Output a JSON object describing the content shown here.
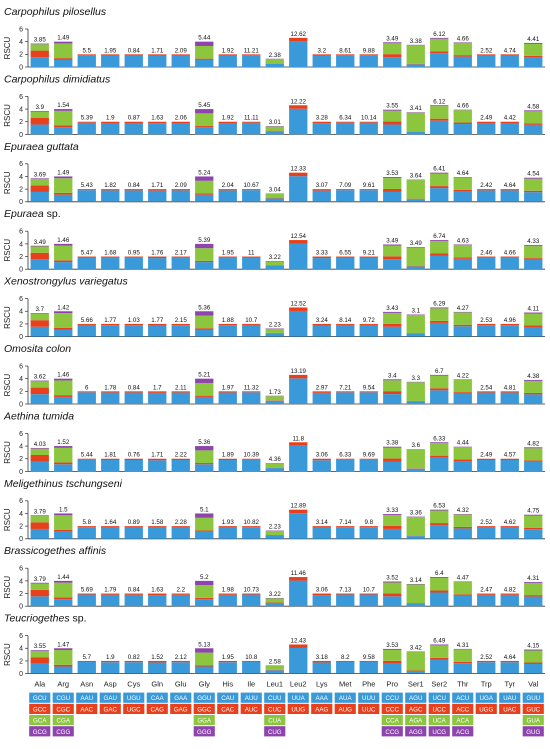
{
  "legend_colors": [
    "#3a9ad9",
    "#e8401c",
    "#8cc63f",
    "#8e44ad"
  ],
  "chart_data": {
    "type": "bar",
    "stacked": true,
    "ylabel": "RSCU",
    "ylim": [
      0,
      6
    ],
    "yticks": [
      0,
      2,
      4,
      6
    ],
    "categories": [
      "Ala",
      "Arg",
      "Asn",
      "Asp",
      "Cys",
      "Gln",
      "Glu",
      "Gly",
      "His",
      "Ile",
      "Leu1",
      "Leu2",
      "Lys",
      "Met",
      "Phe",
      "Pro",
      "Ser1",
      "Ser2",
      "Thr",
      "Trp",
      "Tyr",
      "Val"
    ],
    "codons": [
      [
        "GCU",
        "GCC",
        "GCA",
        "GCG"
      ],
      [
        "CGU",
        "CGC",
        "CGA",
        "CGG"
      ],
      [
        "AAU",
        "AAC"
      ],
      [
        "GAU",
        "GAC"
      ],
      [
        "UGU",
        "UGC"
      ],
      [
        "CAA",
        "CAG"
      ],
      [
        "GAA",
        "GAG"
      ],
      [
        "GGU",
        "GGC",
        "GGA",
        "GGG"
      ],
      [
        "CAU",
        "CAC"
      ],
      [
        "AUU",
        "AUC"
      ],
      [
        "CUU",
        "CUC",
        "CUA",
        "CUG"
      ],
      [
        "UUA",
        "UUG"
      ],
      [
        "AAA",
        "AAG"
      ],
      [
        "AUA",
        "AUG"
      ],
      [
        "UUU",
        "UUC"
      ],
      [
        "CCU",
        "CCC",
        "CCA",
        "CCG"
      ],
      [
        "AGU",
        "AGC",
        "AGA",
        "AGG"
      ],
      [
        "UCU",
        "UCC",
        "UCA",
        "UCG"
      ],
      [
        "ACU",
        "ACC",
        "ACA",
        "ACG"
      ],
      [
        "UGA",
        "UGG"
      ],
      [
        "UAU",
        "UAC"
      ],
      [
        "GUU",
        "GUC",
        "GUA",
        "GUG"
      ]
    ],
    "panels": [
      {
        "title": "Carpophilus pilosellus",
        "roman": "",
        "labels": [
          "3.85",
          "1.49",
          "5.5",
          "1.95",
          "0.84",
          "1.71",
          "2.09",
          "5.44",
          "1.92",
          "11.21",
          "2.38",
          "12.62",
          "3.2",
          "8.61",
          "9.88",
          "3.49",
          "3.38",
          "6.12",
          "4.66",
          "2.52",
          "4.74",
          "4.41"
        ]
      },
      {
        "title": "Carpophilus dimidiatus",
        "roman": "",
        "labels": [
          "3.9",
          "1.54",
          "5.39",
          "1.9",
          "0.87",
          "1.63",
          "2.06",
          "5.45",
          "1.92",
          "11.11",
          "3.01",
          "12.22",
          "3.28",
          "6.34",
          "10.14",
          "3.55",
          "3.41",
          "6.12",
          "4.66",
          "2.49",
          "4.42",
          "4.58"
        ]
      },
      {
        "title": "Epuraea guttata",
        "roman": "",
        "labels": [
          "3.69",
          "1.49",
          "5.43",
          "1.82",
          "0.84",
          "1.71",
          "2.09",
          "5.24",
          "2.04",
          "10.67",
          "3.04",
          "12.33",
          "3.07",
          "7.09",
          "9.61",
          "3.53",
          "3.64",
          "6.41",
          "4.64",
          "2.42",
          "4.64",
          "4.54"
        ]
      },
      {
        "title": "Epuraea",
        "roman": " sp.",
        "labels": [
          "3.49",
          "1.46",
          "5.47",
          "1.68",
          "0.95",
          "1.76",
          "2.17",
          "5.39",
          "1.95",
          "11",
          "3.22",
          "12.54",
          "3.33",
          "6.55",
          "9.21",
          "3.49",
          "3.49",
          "6.74",
          "4.63",
          "2.46",
          "4.66",
          "4.33"
        ]
      },
      {
        "title": "Xenostrongylus variegatus",
        "roman": "",
        "labels": [
          "3.7",
          "1.42",
          "5.66",
          "1.77",
          "1.03",
          "1.77",
          "2.15",
          "5.36",
          "1.88",
          "10.7",
          "2.23",
          "12.52",
          "3.24",
          "8.14",
          "9.72",
          "3.43",
          "3.1",
          "6.29",
          "4.27",
          "2.53",
          "4.96",
          "4.11"
        ]
      },
      {
        "title": "Omosita colon",
        "roman": "",
        "labels": [
          "3.62",
          "1.46",
          "6",
          "1.78",
          "0.84",
          "1.7",
          "2.11",
          "5.21",
          "1.97",
          "11.32",
          "1.73",
          "13.19",
          "2.97",
          "7.21",
          "9.54",
          "3.4",
          "3.3",
          "6.7",
          "4.22",
          "2.54",
          "4.81",
          "4.38"
        ]
      },
      {
        "title": "Aethina tumida",
        "roman": "",
        "labels": [
          "4.03",
          "1.52",
          "5.44",
          "1.81",
          "0.76",
          "1.71",
          "2.22",
          "5.36",
          "1.89",
          "10.39",
          "4.36",
          "11.8",
          "3.06",
          "6.33",
          "9.69",
          "3.38",
          "3.6",
          "6.33",
          "4.44",
          "2.49",
          "4.57",
          "4.82"
        ]
      },
      {
        "title": "Meligethinus tschungseni",
        "roman": "",
        "labels": [
          "3.79",
          "1.5",
          "5.8",
          "1.64",
          "0.89",
          "1.58",
          "2.28",
          "5.1",
          "1.93",
          "10.82",
          "2.23",
          "12.89",
          "3.14",
          "7.14",
          "9.8",
          "3.33",
          "3.36",
          "6.53",
          "4.32",
          "2.52",
          "4.62",
          "4.75"
        ]
      },
      {
        "title": "Brassicogethes affinis",
        "roman": "",
        "labels": [
          "3.79",
          "1.44",
          "5.69",
          "1.79",
          "0.84",
          "1.63",
          "2.2",
          "5.2",
          "1.98",
          "10.73",
          "3.22",
          "11.46",
          "3.06",
          "7.13",
          "10.7",
          "3.52",
          "3.14",
          "6.4",
          "4.47",
          "2.47",
          "4.82",
          "4.31"
        ]
      },
      {
        "title": "Teucriogethes",
        "roman": " sp.",
        "labels": [
          "3.55",
          "1.47",
          "5.7",
          "1.9",
          "0.82",
          "1.52",
          "2.12",
          "5.13",
          "1.95",
          "10.8",
          "2.58",
          "12.43",
          "3.18",
          "8.2",
          "9.58",
          "3.53",
          "3.42",
          "6.49",
          "4.31",
          "2.52",
          "4.64",
          "4.15"
        ]
      }
    ]
  }
}
